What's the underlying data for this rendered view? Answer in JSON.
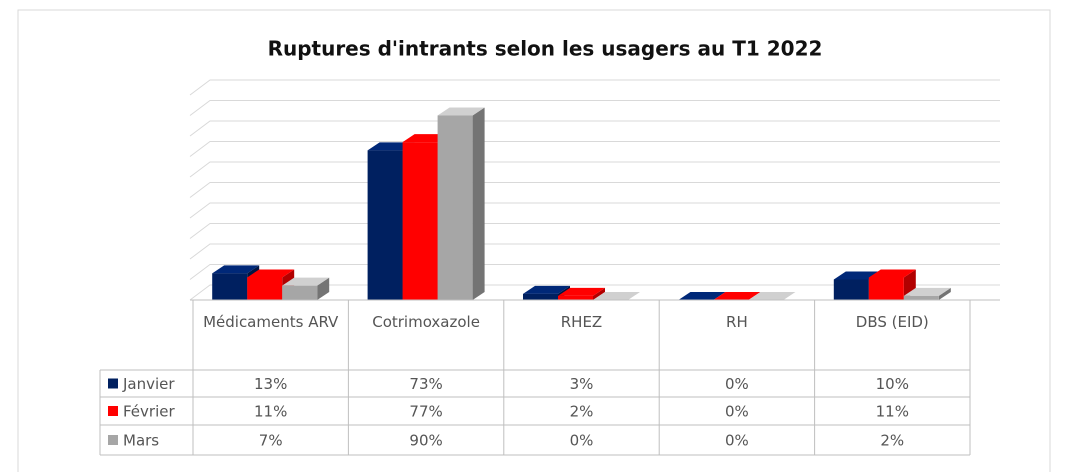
{
  "chart_data": {
    "type": "bar3d",
    "title": "Ruptures d'intrants selon les usagers au T1 2022",
    "categories": [
      "Médicaments ARV",
      "Cotrimoxazole",
      "RHEZ",
      "RH",
      "DBS (EID)"
    ],
    "series": [
      {
        "name": "Janvier",
        "color": "#002060",
        "values": [
          13,
          73,
          3,
          0,
          10
        ],
        "value_labels": [
          "13%",
          "73%",
          "3%",
          "0%",
          "10%"
        ]
      },
      {
        "name": "Février",
        "color": "#ff0000",
        "values": [
          11,
          77,
          2,
          0,
          11
        ],
        "value_labels": [
          "11%",
          "77%",
          "2%",
          "0%",
          "11%"
        ]
      },
      {
        "name": "Mars",
        "color": "#a6a6a6",
        "values": [
          7,
          90,
          0,
          0,
          2
        ],
        "value_labels": [
          "7%",
          "90%",
          "0%",
          "0%",
          "2%"
        ]
      }
    ],
    "ylim": [
      0,
      100
    ],
    "yticks": [
      0,
      10,
      20,
      30,
      40,
      50,
      60,
      70,
      80,
      90,
      100
    ],
    "grid": true
  }
}
